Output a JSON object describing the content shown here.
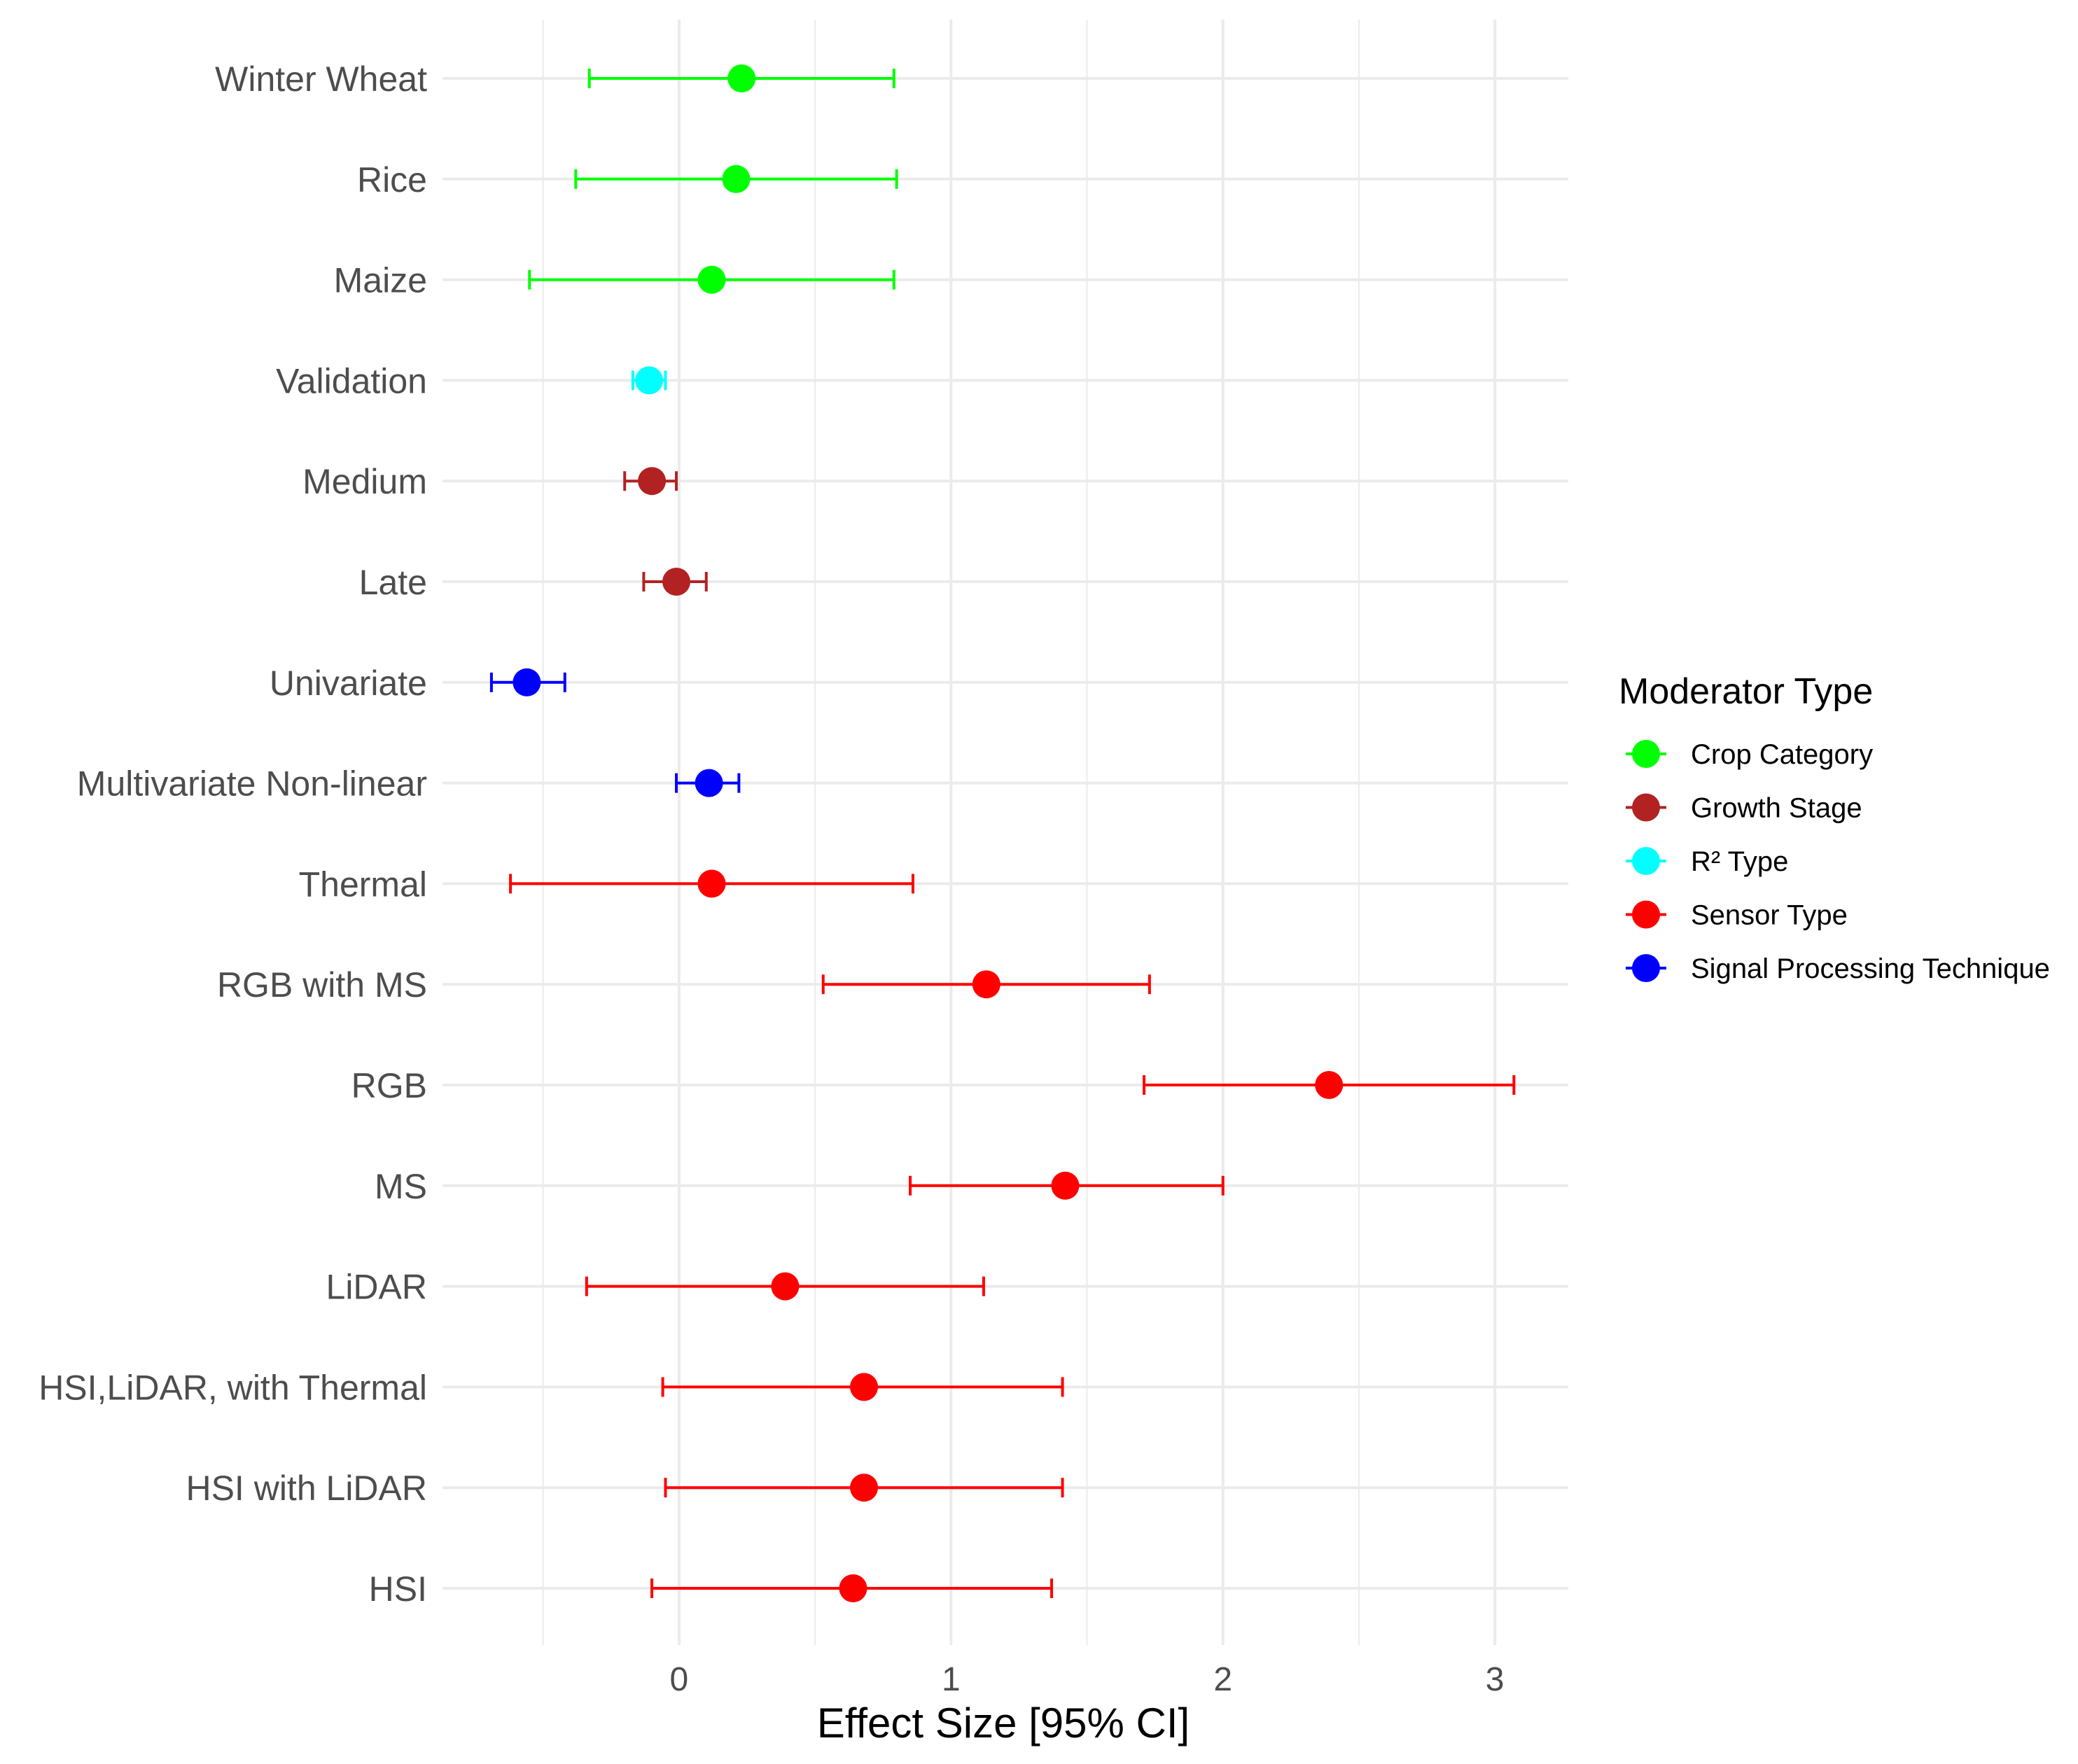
{
  "chart_data": {
    "type": "scatter",
    "subtype": "forest-plot",
    "title": "",
    "xlabel": "Effect Size [95% CI]",
    "ylabel": "",
    "xlim": [
      -0.87,
      3.27
    ],
    "xticks": [
      0,
      1,
      2,
      3
    ],
    "xtick_labels": [
      "0",
      "1",
      "2",
      "3"
    ],
    "grid": true,
    "legend": {
      "title": "Moderator Type",
      "placement": "right",
      "entries": [
        {
          "label": "Crop Category",
          "color": "#00ff00"
        },
        {
          "label": "Growth Stage",
          "color": "#b22222"
        },
        {
          "label": "R² Type",
          "color": "#00ffff"
        },
        {
          "label": "Sensor Type",
          "color": "#ff0000"
        },
        {
          "label": "Signal Processing Technique",
          "color": "#0000ff"
        }
      ]
    },
    "rows": [
      {
        "label": "Winter Wheat",
        "group": "Crop Category",
        "estimate": 0.23,
        "lower": -0.33,
        "upper": 0.79
      },
      {
        "label": "Rice",
        "group": "Crop Category",
        "estimate": 0.21,
        "lower": -0.38,
        "upper": 0.8
      },
      {
        "label": "Maize",
        "group": "Crop Category",
        "estimate": 0.12,
        "lower": -0.55,
        "upper": 0.79
      },
      {
        "label": "Validation",
        "group": "R² Type",
        "estimate": -0.11,
        "lower": -0.17,
        "upper": -0.05
      },
      {
        "label": "Medium",
        "group": "Growth Stage",
        "estimate": -0.1,
        "lower": -0.2,
        "upper": -0.01
      },
      {
        "label": "Late",
        "group": "Growth Stage",
        "estimate": -0.01,
        "lower": -0.13,
        "upper": 0.1
      },
      {
        "label": "Univariate",
        "group": "Signal Processing Technique",
        "estimate": -0.56,
        "lower": -0.69,
        "upper": -0.42
      },
      {
        "label": "Multivariate Non-linear",
        "group": "Signal Processing Technique",
        "estimate": 0.11,
        "lower": -0.01,
        "upper": 0.22
      },
      {
        "label": "Thermal",
        "group": "Sensor Type",
        "estimate": 0.12,
        "lower": -0.62,
        "upper": 0.86
      },
      {
        "label": "RGB with MS",
        "group": "Sensor Type",
        "estimate": 1.13,
        "lower": 0.53,
        "upper": 1.73
      },
      {
        "label": "RGB",
        "group": "Sensor Type",
        "estimate": 2.39,
        "lower": 1.71,
        "upper": 3.07
      },
      {
        "label": "MS",
        "group": "Sensor Type",
        "estimate": 1.42,
        "lower": 0.85,
        "upper": 2.0
      },
      {
        "label": "LiDAR",
        "group": "Sensor Type",
        "estimate": 0.39,
        "lower": -0.34,
        "upper": 1.12
      },
      {
        "label": "HSI,LiDAR, with Thermal",
        "group": "Sensor Type",
        "estimate": 0.68,
        "lower": -0.06,
        "upper": 1.41
      },
      {
        "label": "HSI with LiDAR",
        "group": "Sensor Type",
        "estimate": 0.68,
        "lower": -0.05,
        "upper": 1.41
      },
      {
        "label": "HSI",
        "group": "Sensor Type",
        "estimate": 0.64,
        "lower": -0.1,
        "upper": 1.37
      }
    ]
  }
}
